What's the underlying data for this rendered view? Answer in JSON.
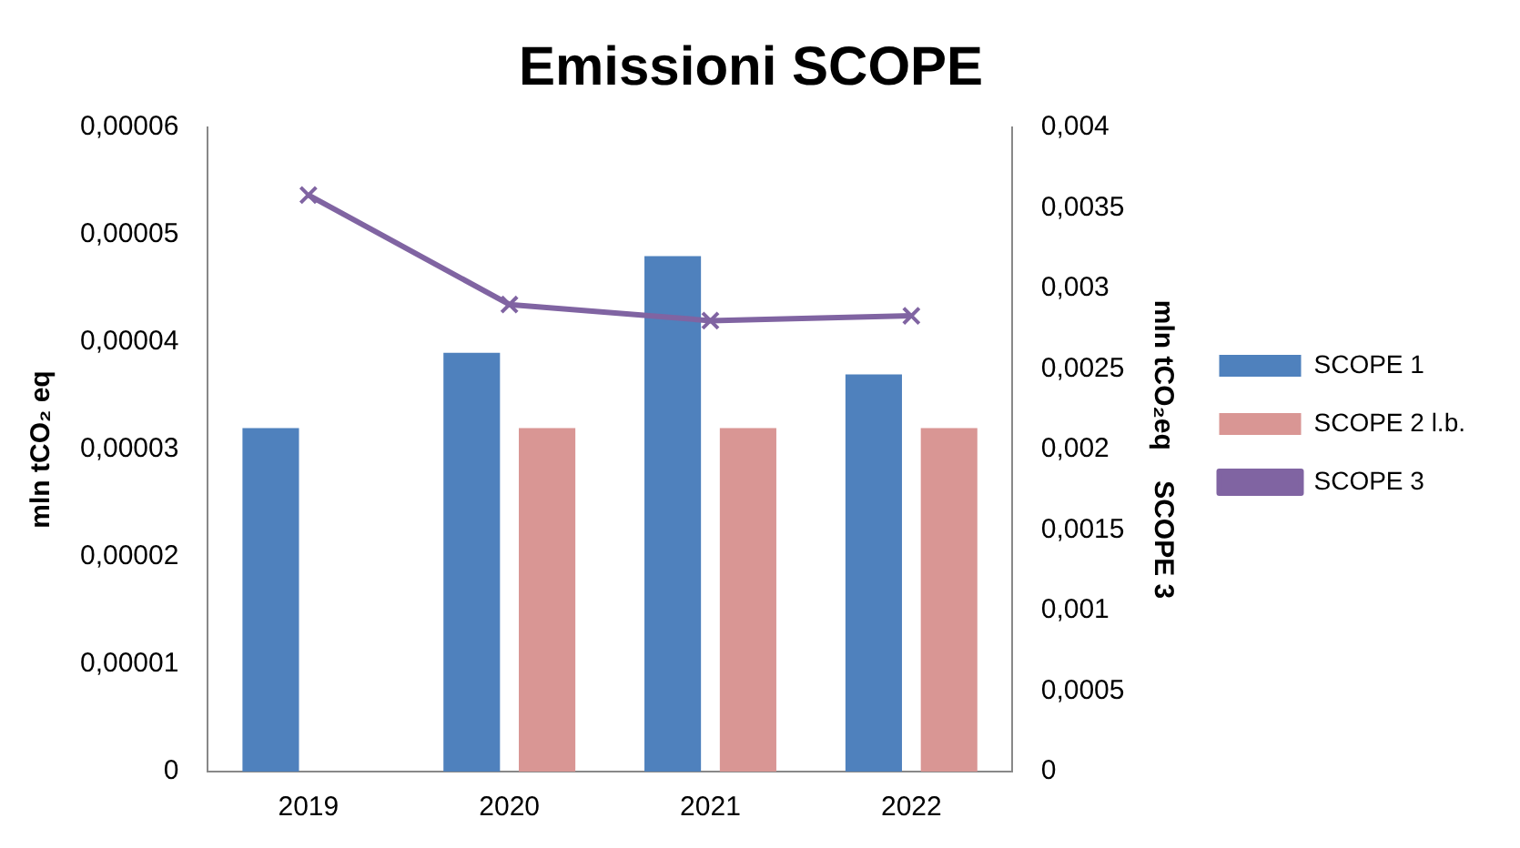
{
  "chart_data": {
    "type": "bar",
    "title": "Emissioni SCOPE",
    "ylabel": "mln tCO₂ eq",
    "y2label": "mln tCO₂eq    SCOPE 3",
    "categories": [
      "2019",
      "2020",
      "2021",
      "2022"
    ],
    "series": [
      {
        "name": "SCOPE 1",
        "color": "#4f81bd",
        "values": [
          3.2e-05,
          3.9e-05,
          4.8e-05,
          3.7e-05
        ]
      },
      {
        "name": "SCOPE 2 l.b.",
        "color": "#d99694",
        "values": [
          null,
          3.2e-05,
          3.2e-05,
          3.2e-05
        ]
      },
      {
        "name": "SCOPE 3",
        "type": "line",
        "axis": "y2",
        "color": "#8064a2",
        "values": [
          0.00358,
          0.0029,
          0.0028,
          0.00283
        ]
      }
    ],
    "ylim": [
      0,
      6e-05
    ],
    "yticks": [
      0,
      {
        "value": 1e-05,
        "label": "0,00001"
      },
      {
        "value": 2e-05,
        "label": "0,00002"
      },
      {
        "value": 3e-05,
        "label": "0,00003"
      },
      {
        "value": 4e-05,
        "label": "0,00004"
      },
      {
        "value": 5e-05,
        "label": "0,00005"
      },
      {
        "value": 6e-05,
        "label": "0,00006"
      }
    ],
    "y2lim": [
      0,
      0.004
    ],
    "y2ticks": [
      0,
      {
        "value": 0.0005,
        "label": "0,0005"
      },
      {
        "value": 0.001,
        "label": "0,001"
      },
      {
        "value": 0.0015,
        "label": "0,0015"
      },
      {
        "value": 0.002,
        "label": "0,002"
      },
      {
        "value": 0.0025,
        "label": "0,0025"
      },
      {
        "value": 0.003,
        "label": "0,003"
      },
      {
        "value": 0.0035,
        "label": "0,0035"
      },
      {
        "value": 0.004,
        "label": "0,004"
      }
    ],
    "legend": "right",
    "grid": false,
    "marker": "cross"
  }
}
